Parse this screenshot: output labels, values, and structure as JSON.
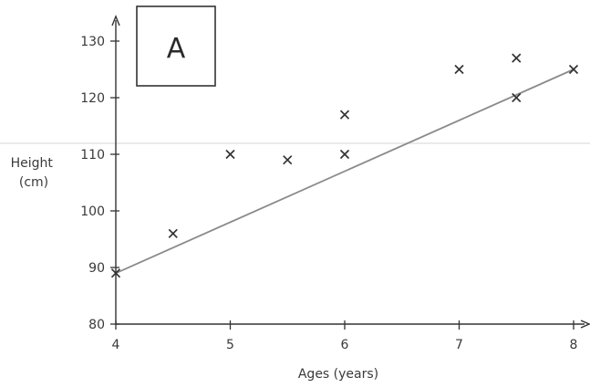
{
  "chart_data": {
    "type": "scatter",
    "panel_label": "A",
    "xlabel": "Ages (years)",
    "ylabel": "Height\n(cm)",
    "xlim": [
      4,
      8
    ],
    "ylim": [
      80,
      130
    ],
    "x_ticks": [
      4,
      5,
      6,
      7,
      8
    ],
    "y_ticks": [
      80,
      90,
      100,
      110,
      120,
      130
    ],
    "grid": false,
    "legend": "none",
    "marker": "x",
    "series": [
      {
        "points": [
          {
            "x": 4,
            "y": 89
          },
          {
            "x": 4.5,
            "y": 96
          },
          {
            "x": 5,
            "y": 110
          },
          {
            "x": 5.5,
            "y": 109
          },
          {
            "x": 6,
            "y": 117
          },
          {
            "x": 6,
            "y": 110
          },
          {
            "x": 7,
            "y": 125
          },
          {
            "x": 7.5,
            "y": 127
          },
          {
            "x": 7.5,
            "y": 120
          },
          {
            "x": 8,
            "y": 125
          }
        ]
      }
    ],
    "trend_line": {
      "from": {
        "x": 4,
        "y": 89
      },
      "to": {
        "x": 8,
        "y": 125
      }
    },
    "colors": {
      "axis": "#333333",
      "marker": "#333333",
      "trend_line": "#8a8a8a",
      "scan_line": "#e4e4e4"
    }
  }
}
